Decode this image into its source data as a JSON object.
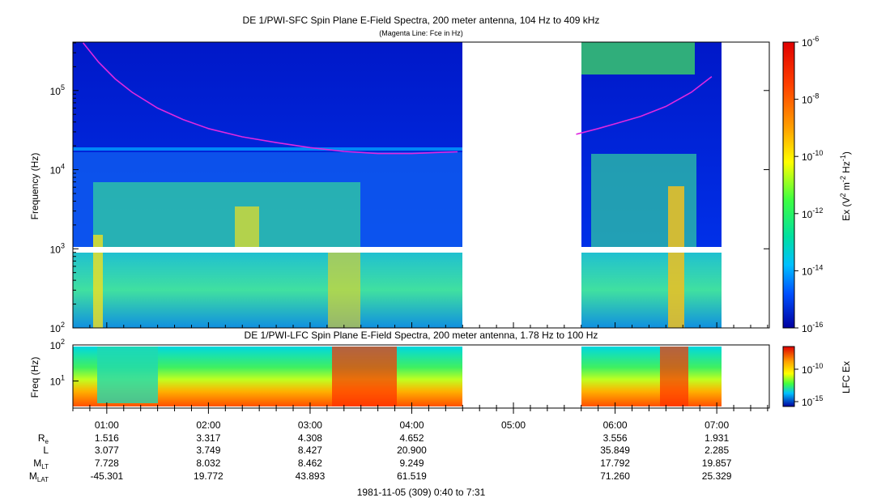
{
  "chart_data": [
    {
      "type": "heatmap",
      "title": "DE 1/PWI-SFC  Spin Plane E-Field Spectra, 200 meter antenna, 104 Hz to 409 kHz",
      "subtitle": "(Magenta Line: Fce in Hz)",
      "ylabel": "Frequency (Hz)",
      "y_scale": "log",
      "ylim": [
        100,
        409000
      ],
      "y_ticks": [
        {
          "value": 100,
          "base": "10",
          "exp": "2"
        },
        {
          "value": 1000,
          "base": "10",
          "exp": "3"
        },
        {
          "value": 10000,
          "base": "10",
          "exp": "4"
        },
        {
          "value": 100000,
          "base": "10",
          "exp": "5"
        }
      ],
      "colorbar": {
        "label_parts": [
          "Ex (V",
          "2",
          " m",
          "-2",
          " Hz",
          "-1",
          ")"
        ],
        "scale": "log",
        "range": [
          1e-16,
          1e-06
        ],
        "ticks": [
          {
            "value": 1e-06,
            "base": "10",
            "exp": "-6"
          },
          {
            "value": 1e-08,
            "base": "10",
            "exp": "-8"
          },
          {
            "value": 1e-10,
            "base": "10",
            "exp": "-10"
          },
          {
            "value": 1e-12,
            "base": "10",
            "exp": "-12"
          },
          {
            "value": 1e-14,
            "base": "10",
            "exp": "-14"
          },
          {
            "value": 1e-16,
            "base": "10",
            "exp": "-16"
          }
        ]
      },
      "data_gaps": [
        [
          "04:27",
          "05:37"
        ]
      ],
      "fce_line": {
        "color": "#e028e0",
        "segments": [
          {
            "x": [
              "00:46",
              "00:55",
              "01:05",
              "01:15",
              "01:30",
              "01:45",
              "02:00",
              "02:20",
              "02:40",
              "03:00",
              "03:20",
              "03:40",
              "04:00",
              "04:15",
              "04:27"
            ],
            "y": [
              400000,
              230000,
              140000,
              95000,
              60000,
              43000,
              33000,
              26000,
              22000,
              19000,
              17000,
              16000,
              16000,
              16500,
              16800
            ]
          },
          {
            "x": [
              "05:37",
              "05:50",
              "06:00",
              "06:15",
              "06:30",
              "06:45",
              "06:57"
            ],
            "y": [
              28000,
              33000,
              38000,
              47000,
              63000,
              95000,
              150000
            ]
          }
        ]
      }
    },
    {
      "type": "heatmap",
      "title": "DE 1/PWI-LFC  Spin Plane E-Field Spectra, 200 meter antenna, 1.78 Hz to 100 Hz",
      "ylabel": "Freq (Hz)",
      "y_scale": "log",
      "ylim": [
        1.78,
        100
      ],
      "y_ticks": [
        {
          "value": 100,
          "base": "10",
          "exp": "2"
        },
        {
          "value": 10,
          "base": "10",
          "exp": "1"
        }
      ],
      "colorbar": {
        "label": "LFC Ex",
        "scale": "log",
        "ticks": [
          {
            "value": 1e-10,
            "base": "10",
            "exp": "-10"
          },
          {
            "value": 1e-15,
            "base": "10",
            "exp": "-15"
          }
        ]
      },
      "data_gaps": [
        [
          "04:27",
          "05:37"
        ]
      ]
    }
  ],
  "x_axis": {
    "ticks": [
      "01:00",
      "02:00",
      "03:00",
      "04:00",
      "05:00",
      "06:00",
      "07:00"
    ],
    "range": [
      "00:40",
      "07:31"
    ],
    "caption": "1981-11-05 (309) 0:40 to 7:31"
  },
  "ephemeris": {
    "rows": [
      {
        "label": "R",
        "sub": "e",
        "values": [
          "1.516",
          "3.317",
          "4.308",
          "4.652",
          "",
          "3.556",
          "1.931"
        ]
      },
      {
        "label": "L",
        "sub": "",
        "values": [
          "3.077",
          "3.749",
          "8.427",
          "20.900",
          "",
          "35.849",
          "2.285"
        ]
      },
      {
        "label": "M",
        "sub": "LT",
        "values": [
          "7.728",
          "8.032",
          "8.462",
          "9.249",
          "",
          "17.792",
          "19.857"
        ]
      },
      {
        "label": "M",
        "sub": "LAT",
        "values": [
          "-45.301",
          "19.772",
          "43.893",
          "61.519",
          "",
          "71.260",
          "25.329"
        ]
      }
    ]
  }
}
